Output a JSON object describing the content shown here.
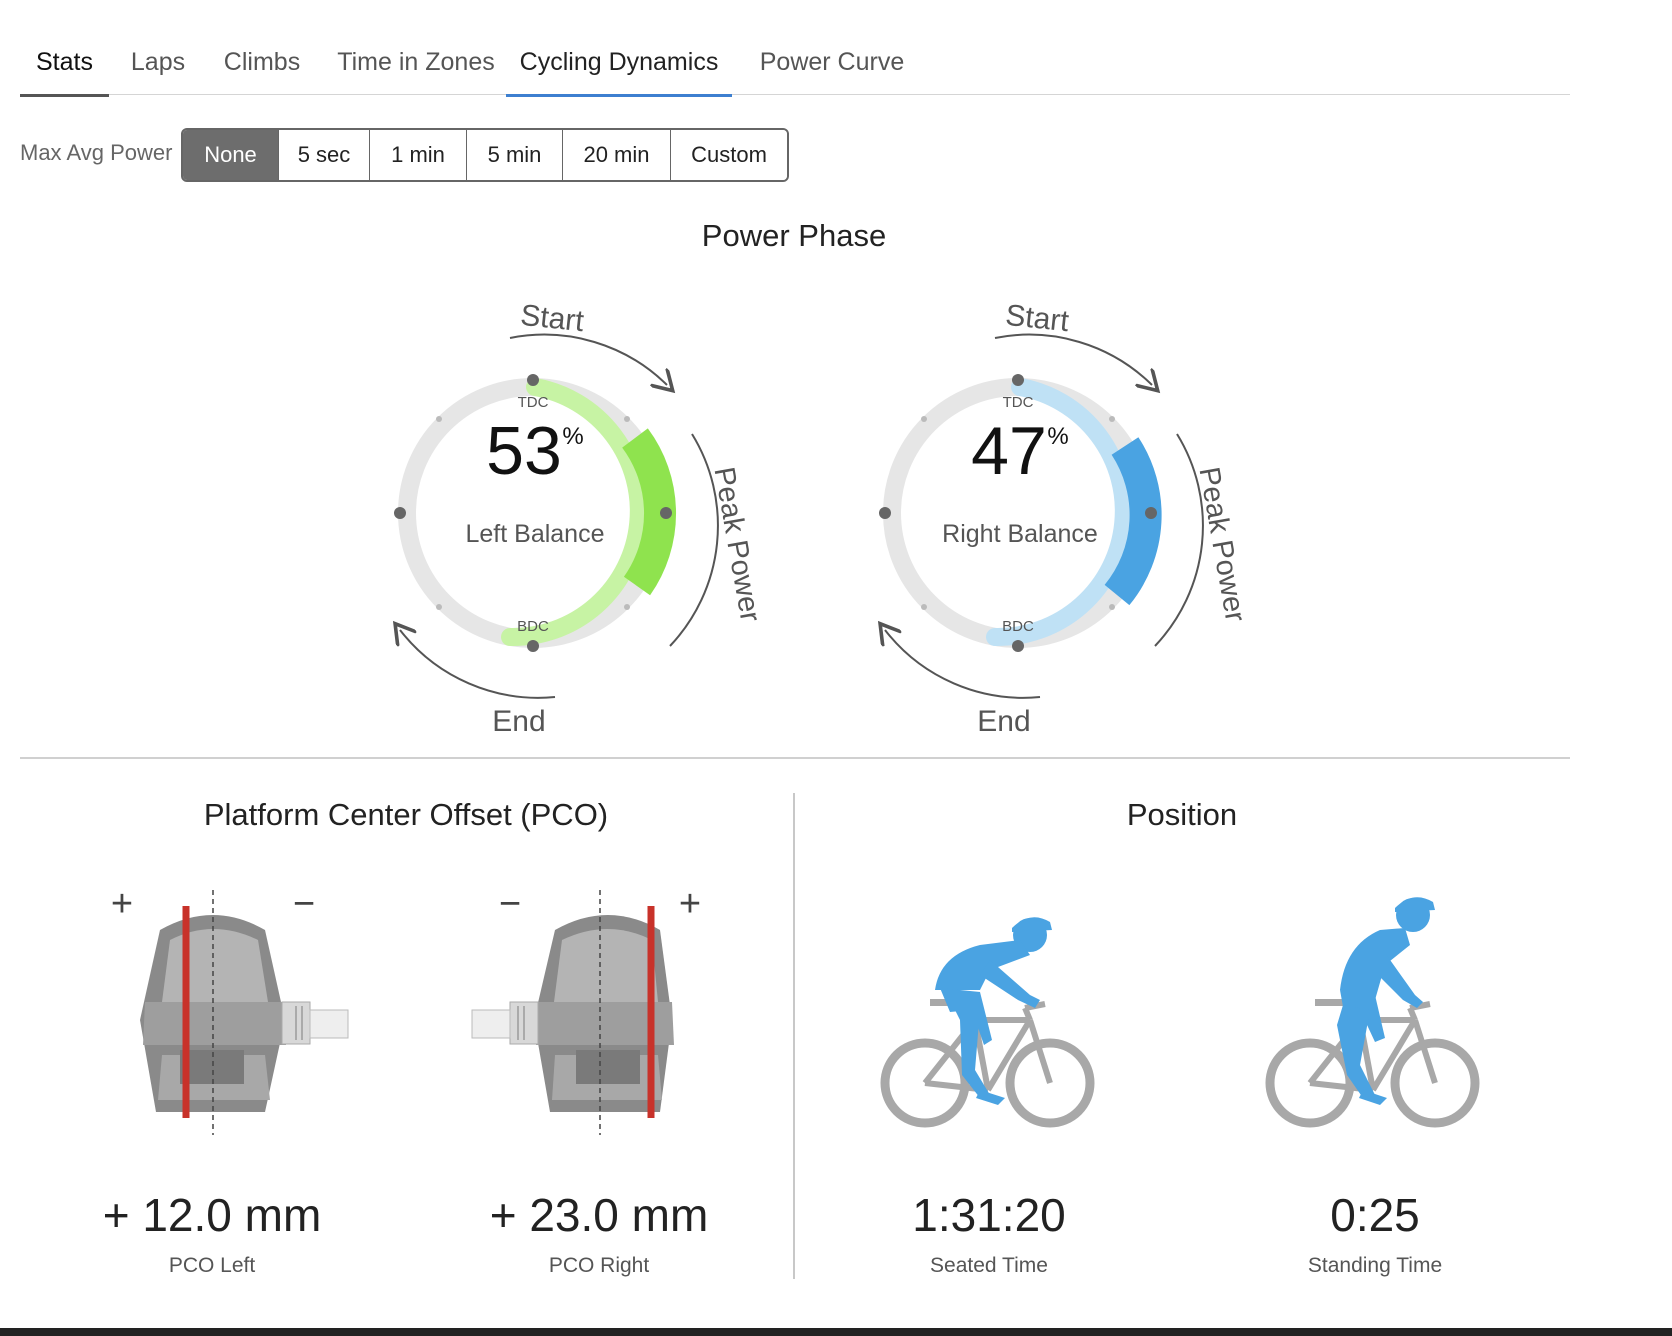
{
  "tabs": [
    {
      "label": "Stats"
    },
    {
      "label": "Laps"
    },
    {
      "label": "Climbs"
    },
    {
      "label": "Time in Zones"
    },
    {
      "label": "Cycling Dynamics"
    },
    {
      "label": "Power Curve"
    }
  ],
  "filter": {
    "label": "Max Avg Power",
    "options": [
      "None",
      "5 sec",
      "1 min",
      "5 min",
      "20 min",
      "Custom"
    ],
    "selected": "None"
  },
  "power_phase": {
    "title": "Power Phase",
    "left": {
      "value": "53",
      "unit": "%",
      "label": "Left Balance",
      "tdc": "TDC",
      "bdc": "BDC",
      "start": "Start",
      "end": "End",
      "peak": "Peak Power",
      "arc_color": "#c7f3a4",
      "peak_color": "#8fe34e"
    },
    "right": {
      "value": "47",
      "unit": "%",
      "label": "Right Balance",
      "tdc": "TDC",
      "bdc": "BDC",
      "start": "Start",
      "end": "End",
      "peak": "Peak Power",
      "arc_color": "#bfe1f5",
      "peak_color": "#4aa3e2"
    }
  },
  "pco": {
    "title": "Platform Center Offset (PCO)",
    "left": {
      "value": "+ 12.0 mm",
      "label": "PCO Left",
      "plus": "+",
      "minus": "−"
    },
    "right": {
      "value": "+ 23.0 mm",
      "label": "PCO Right",
      "plus": "+",
      "minus": "−"
    }
  },
  "position": {
    "title": "Position",
    "seated": {
      "value": "1:31:20",
      "label": "Seated Time"
    },
    "standing": {
      "value": "0:25",
      "label": "Standing Time"
    }
  },
  "colors": {
    "accent": "#3d7fd0",
    "rider": "#4aa3e2",
    "bike": "#a8a8a8",
    "pco_line": "#c8322a"
  }
}
